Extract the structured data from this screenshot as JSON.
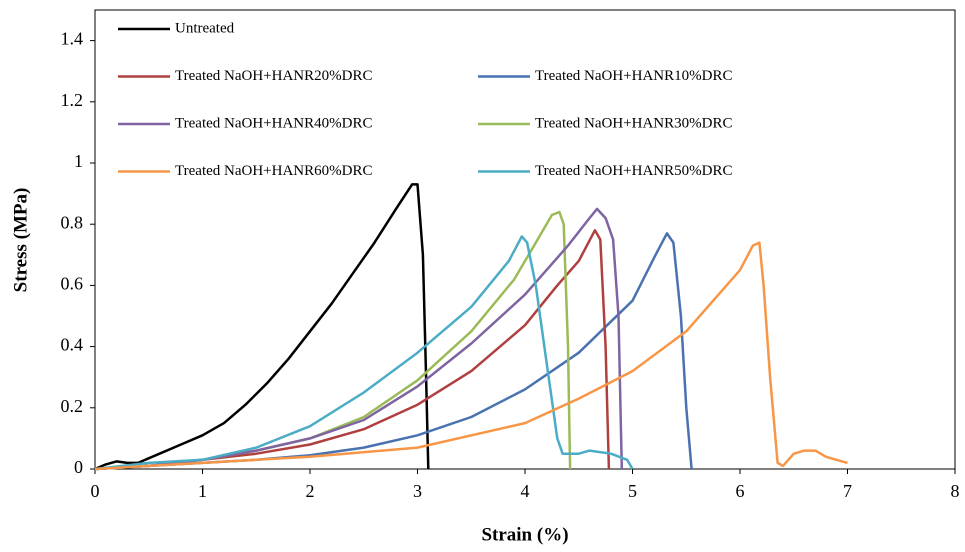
{
  "chart_data": {
    "type": "line",
    "x_label": "Strain (%)",
    "y_label": "Stress (MPa)",
    "xlim": [
      0,
      8
    ],
    "xticks": [
      0,
      1,
      2,
      3,
      4,
      5,
      6,
      7,
      8
    ],
    "ylim": [
      0,
      1.5
    ],
    "yticks": [
      0,
      0.2,
      0.4,
      0.6,
      0.8,
      1,
      1.2,
      1.4
    ],
    "grid": false,
    "series": [
      {
        "name": "Untreated",
        "color": "#000000",
        "x": [
          0,
          0.1,
          0.2,
          0.3,
          0.4,
          0.6,
          0.8,
          1.0,
          1.2,
          1.4,
          1.6,
          1.8,
          2.0,
          2.2,
          2.4,
          2.6,
          2.8,
          2.95,
          3.0,
          3.05,
          3.08,
          3.1
        ],
        "values": [
          0,
          0.015,
          0.025,
          0.02,
          0.02,
          0.05,
          0.08,
          0.11,
          0.15,
          0.21,
          0.28,
          0.36,
          0.45,
          0.54,
          0.64,
          0.74,
          0.85,
          0.93,
          0.93,
          0.7,
          0.3,
          0
        ]
      },
      {
        "name": "Treated NaOH+HANR10%DRC",
        "color": "#4a72b0",
        "x": [
          0,
          0.5,
          1,
          1.5,
          2,
          2.5,
          3,
          3.5,
          4,
          4.5,
          5,
          5.2,
          5.32,
          5.38,
          5.45,
          5.5,
          5.55
        ],
        "values": [
          0,
          0.01,
          0.02,
          0.03,
          0.045,
          0.07,
          0.11,
          0.17,
          0.26,
          0.38,
          0.55,
          0.69,
          0.77,
          0.74,
          0.5,
          0.2,
          0
        ]
      },
      {
        "name": "Treated NaOH+HANR20%DRC",
        "color": "#b04040",
        "x": [
          0,
          0.5,
          1,
          1.5,
          2,
          2.5,
          3,
          3.5,
          4,
          4.3,
          4.5,
          4.65,
          4.7,
          4.75,
          4.78
        ],
        "values": [
          0,
          0.01,
          0.03,
          0.05,
          0.08,
          0.13,
          0.21,
          0.32,
          0.47,
          0.6,
          0.68,
          0.78,
          0.75,
          0.4,
          0
        ]
      },
      {
        "name": "Treated NaOH+HANR30%DRC",
        "color": "#9bbb59",
        "x": [
          0,
          0.5,
          1,
          1.5,
          2,
          2.5,
          3,
          3.5,
          3.9,
          4.1,
          4.25,
          4.32,
          4.36,
          4.4,
          4.42
        ],
        "values": [
          0,
          0.01,
          0.03,
          0.06,
          0.1,
          0.17,
          0.29,
          0.45,
          0.62,
          0.74,
          0.83,
          0.84,
          0.8,
          0.4,
          0
        ]
      },
      {
        "name": "Treated NaOH+HANR40%DRC",
        "color": "#7f64a2",
        "x": [
          0,
          0.5,
          1,
          1.5,
          2,
          2.5,
          3,
          3.5,
          4,
          4.4,
          4.6,
          4.67,
          4.75,
          4.82,
          4.87,
          4.9
        ],
        "values": [
          0,
          0.01,
          0.03,
          0.06,
          0.1,
          0.16,
          0.27,
          0.41,
          0.57,
          0.73,
          0.82,
          0.85,
          0.82,
          0.75,
          0.5,
          0
        ]
      },
      {
        "name": "Treated NaOH+HANR50%DRC",
        "color": "#4bacc6",
        "x": [
          0,
          0.5,
          1,
          1.5,
          2,
          2.5,
          3,
          3.5,
          3.85,
          3.97,
          4.02,
          4.1,
          4.2,
          4.3,
          4.35,
          4.5,
          4.6,
          4.8,
          4.95,
          5.0
        ],
        "values": [
          0,
          0.02,
          0.03,
          0.07,
          0.14,
          0.25,
          0.38,
          0.53,
          0.68,
          0.76,
          0.74,
          0.6,
          0.35,
          0.1,
          0.05,
          0.05,
          0.06,
          0.05,
          0.03,
          0
        ]
      },
      {
        "name": "Treated NaOH+HANR60%DRC",
        "color": "#f79646",
        "x": [
          0,
          0.5,
          1,
          1.5,
          2,
          3,
          4,
          4.5,
          5,
          5.5,
          6,
          6.12,
          6.18,
          6.22,
          6.28,
          6.35,
          6.4,
          6.5,
          6.6,
          6.7,
          6.8,
          7.0
        ],
        "values": [
          0,
          0.01,
          0.02,
          0.03,
          0.04,
          0.07,
          0.15,
          0.23,
          0.32,
          0.45,
          0.65,
          0.73,
          0.74,
          0.6,
          0.3,
          0.02,
          0.01,
          0.05,
          0.06,
          0.06,
          0.04,
          0.02
        ]
      }
    ]
  }
}
